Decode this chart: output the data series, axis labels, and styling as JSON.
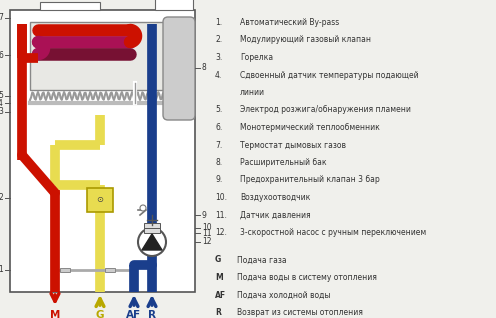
{
  "bg_color": "#f0f0ec",
  "red_color": "#cc1100",
  "blue_color": "#1a3e8c",
  "yellow_color": "#e8dc50",
  "yellow_dark": "#b8a800",
  "gray_color": "#888888",
  "legend_items": [
    {
      "num": "1.",
      "text": "Автоматический By-pass"
    },
    {
      "num": "2.",
      "text": "Модулирующий газовый клапан"
    },
    {
      "num": "3.",
      "text": "Горелка"
    },
    {
      "num": "4.",
      "text": "Сдвоенный датчик температуры подающей"
    },
    {
      "num": "",
      "text": "линии"
    },
    {
      "num": "5.",
      "text": "Электрод розжига/обнаружения пламени"
    },
    {
      "num": "6.",
      "text": "Монотермический теплообменник"
    },
    {
      "num": "7.",
      "text": "Термостат дымовых газов"
    },
    {
      "num": "8.",
      "text": "Расширительный бак"
    },
    {
      "num": "9.",
      "text": "Предохранительный клапан 3 бар"
    },
    {
      "num": "10.",
      "text": "Воздухоотводчик"
    },
    {
      "num": "11.",
      "text": "Датчик давления"
    },
    {
      "num": "12.",
      "text": "3-скоростной насос с ручным переключением"
    }
  ],
  "legend_keys": [
    {
      "key": "G",
      "text": "Подача газа"
    },
    {
      "key": "M",
      "text": "Подача воды в систему отопления"
    },
    {
      "key": "AF",
      "text": "Подача холодной воды"
    },
    {
      "key": "R",
      "text": "Возврат из системы отопления"
    }
  ]
}
